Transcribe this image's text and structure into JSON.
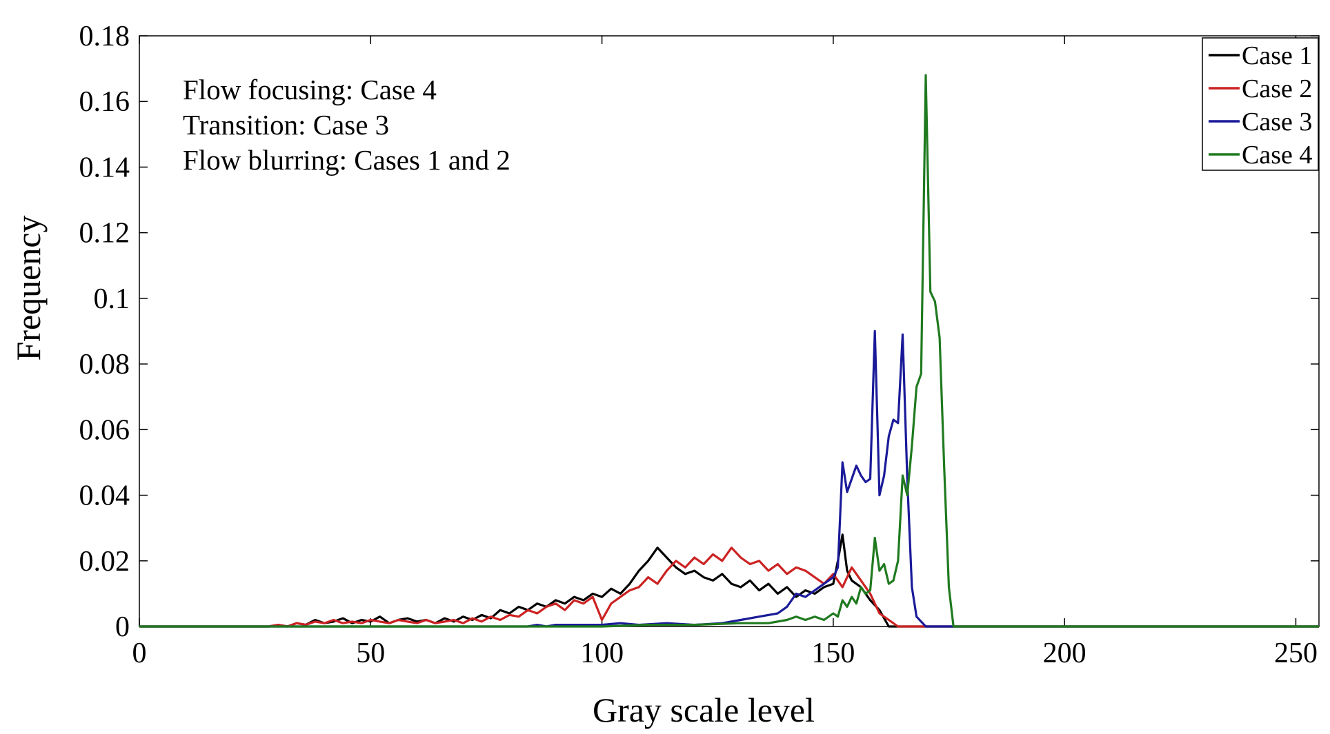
{
  "chart_data": {
    "type": "line",
    "title": "",
    "xlabel": "Gray scale level",
    "ylabel": "Frequency",
    "xlim": [
      0,
      255
    ],
    "ylim": [
      0,
      0.18
    ],
    "xticks": [
      0,
      50,
      100,
      150,
      200,
      250
    ],
    "xtick_labels": [
      "0",
      "50",
      "100",
      "150",
      "200",
      "250"
    ],
    "yticks": [
      0,
      0.02,
      0.04,
      0.06,
      0.08,
      0.1,
      0.12,
      0.14,
      0.16,
      0.18
    ],
    "ytick_labels": [
      "0",
      "0.02",
      "0.04",
      "0.06",
      "0.08",
      "0.1",
      "0.12",
      "0.14",
      "0.16",
      "0.18"
    ],
    "grid": false,
    "legend_position": "top-right",
    "annotations": [
      "Flow focusing: Case 4",
      "Transition: Case 3",
      "Flow blurring: Cases 1 and 2"
    ],
    "series": [
      {
        "name": "Case 1",
        "color": "#000000",
        "x": [
          0,
          28,
          30,
          32,
          34,
          36,
          38,
          40,
          42,
          44,
          46,
          48,
          50,
          52,
          54,
          56,
          58,
          60,
          62,
          64,
          66,
          68,
          70,
          72,
          74,
          76,
          78,
          80,
          82,
          84,
          86,
          88,
          90,
          92,
          94,
          96,
          98,
          100,
          102,
          104,
          106,
          108,
          110,
          112,
          114,
          116,
          118,
          120,
          122,
          124,
          126,
          128,
          130,
          132,
          134,
          136,
          138,
          140,
          142,
          144,
          146,
          148,
          150,
          151,
          152,
          153,
          154,
          156,
          158,
          160,
          162,
          255
        ],
        "y": [
          0,
          0,
          0.0005,
          0,
          0.001,
          0.0005,
          0.002,
          0.001,
          0.0015,
          0.0025,
          0.001,
          0.002,
          0.0015,
          0.003,
          0.001,
          0.002,
          0.0025,
          0.0015,
          0.002,
          0.001,
          0.0025,
          0.0015,
          0.003,
          0.002,
          0.0035,
          0.0025,
          0.005,
          0.004,
          0.006,
          0.005,
          0.007,
          0.006,
          0.008,
          0.007,
          0.009,
          0.008,
          0.01,
          0.009,
          0.0115,
          0.01,
          0.013,
          0.017,
          0.02,
          0.024,
          0.021,
          0.018,
          0.016,
          0.017,
          0.015,
          0.014,
          0.016,
          0.013,
          0.012,
          0.014,
          0.011,
          0.013,
          0.01,
          0.012,
          0.009,
          0.011,
          0.01,
          0.012,
          0.013,
          0.02,
          0.028,
          0.017,
          0.014,
          0.012,
          0.008,
          0.005,
          0,
          0
        ]
      },
      {
        "name": "Case 2",
        "color": "#cc2222",
        "x": [
          0,
          28,
          30,
          32,
          34,
          36,
          38,
          40,
          42,
          44,
          46,
          48,
          50,
          52,
          54,
          56,
          58,
          60,
          62,
          64,
          66,
          68,
          70,
          72,
          74,
          76,
          78,
          80,
          82,
          84,
          86,
          88,
          90,
          92,
          94,
          96,
          98,
          100,
          102,
          104,
          106,
          108,
          110,
          112,
          114,
          116,
          118,
          120,
          122,
          124,
          126,
          128,
          130,
          132,
          134,
          136,
          138,
          140,
          142,
          144,
          146,
          148,
          150,
          152,
          154,
          156,
          158,
          160,
          162,
          164,
          255
        ],
        "y": [
          0,
          0,
          0.0005,
          0,
          0.001,
          0.0005,
          0.0015,
          0.001,
          0.002,
          0.001,
          0.0015,
          0.001,
          0.002,
          0.0015,
          0.001,
          0.002,
          0.0015,
          0.001,
          0.002,
          0.001,
          0.0015,
          0.002,
          0.001,
          0.0025,
          0.0015,
          0.003,
          0.002,
          0.0035,
          0.003,
          0.005,
          0.004,
          0.006,
          0.007,
          0.005,
          0.008,
          0.007,
          0.009,
          0.002,
          0.007,
          0.009,
          0.011,
          0.012,
          0.015,
          0.013,
          0.017,
          0.02,
          0.018,
          0.021,
          0.019,
          0.022,
          0.02,
          0.024,
          0.021,
          0.019,
          0.02,
          0.017,
          0.019,
          0.016,
          0.018,
          0.017,
          0.015,
          0.013,
          0.016,
          0.012,
          0.018,
          0.014,
          0.01,
          0.004,
          0.002,
          0,
          0
        ]
      },
      {
        "name": "Case 3",
        "color": "#1a1a99",
        "x": [
          0,
          84,
          86,
          88,
          90,
          100,
          104,
          108,
          114,
          120,
          126,
          130,
          134,
          138,
          140,
          142,
          144,
          146,
          148,
          150,
          151,
          152,
          153,
          154,
          155,
          156,
          157,
          158,
          159,
          160,
          161,
          162,
          163,
          164,
          165,
          166,
          167,
          168,
          170,
          255
        ],
        "y": [
          0,
          0,
          0.0005,
          0,
          0.0005,
          0.0005,
          0.001,
          0.0005,
          0.001,
          0.0005,
          0.001,
          0.002,
          0.003,
          0.004,
          0.006,
          0.01,
          0.009,
          0.011,
          0.013,
          0.015,
          0.018,
          0.05,
          0.041,
          0.045,
          0.049,
          0.046,
          0.044,
          0.045,
          0.09,
          0.04,
          0.046,
          0.058,
          0.063,
          0.062,
          0.089,
          0.045,
          0.012,
          0.003,
          0,
          0
        ]
      },
      {
        "name": "Case 4",
        "color": "#1f7a1f",
        "x": [
          0,
          100,
          110,
          120,
          130,
          136,
          140,
          142,
          144,
          146,
          148,
          150,
          151,
          152,
          153,
          154,
          155,
          156,
          157,
          158,
          159,
          160,
          161,
          162,
          163,
          164,
          165,
          166,
          167,
          168,
          169,
          170,
          171,
          172,
          173,
          174,
          175,
          176,
          255
        ],
        "y": [
          0,
          0,
          0.0005,
          0.0005,
          0.001,
          0.001,
          0.002,
          0.003,
          0.002,
          0.003,
          0.002,
          0.004,
          0.003,
          0.008,
          0.006,
          0.009,
          0.007,
          0.012,
          0.01,
          0.011,
          0.027,
          0.017,
          0.019,
          0.013,
          0.014,
          0.02,
          0.046,
          0.04,
          0.055,
          0.073,
          0.077,
          0.168,
          0.102,
          0.099,
          0.088,
          0.048,
          0.012,
          0,
          0
        ]
      }
    ]
  }
}
